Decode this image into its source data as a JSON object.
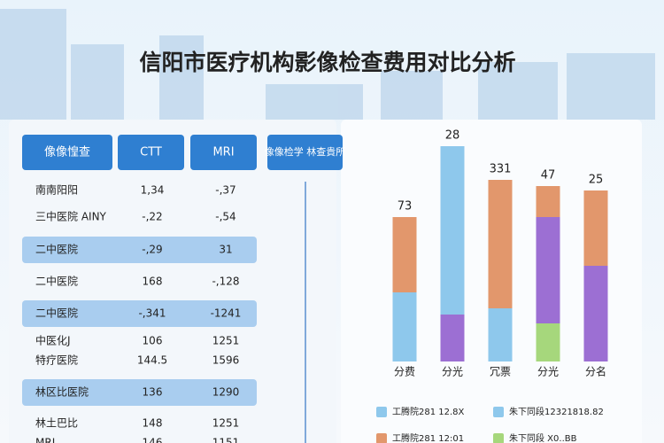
{
  "title": "信阳市医疗机构影像检查费用对比分析",
  "table": {
    "header": [
      "像像惶查",
      "CTT",
      "MRI",
      "像像检学 林查貴所"
    ],
    "rows": [
      [
        "南南阳阳",
        "1,34",
        "-,37"
      ],
      [
        "三中医院 AINY",
        "-,22",
        "-,54"
      ],
      [
        "二中医院",
        "-,29",
        "31"
      ],
      [
        "二中医院",
        "168",
        "-,128"
      ],
      [
        "二中医院",
        "-,341",
        "-1241"
      ],
      [
        "中医化J",
        "106",
        "1251"
      ],
      [
        "特疗医院",
        "144.5",
        "1596"
      ],
      [
        "林区比医院",
        "136",
        "1290"
      ],
      [
        "林土巴比",
        "148",
        "1251"
      ],
      [
        "MRI",
        "146",
        "1151"
      ]
    ],
    "highlight_rows": [
      2,
      4,
      7
    ]
  },
  "chart_data": {
    "type": "stacked-bar",
    "categories": [
      "分费",
      "分光",
      "冗票",
      "分光",
      "分名"
    ],
    "top_labels": [
      "73",
      "28",
      "331",
      "47",
      "25"
    ],
    "ylim": [
      0,
      260
    ],
    "series": [
      {
        "color": "#a6d77c",
        "values": [
          0,
          0,
          0,
          43,
          0
        ]
      },
      {
        "color": "#9c6fd3",
        "values": [
          0,
          53,
          0,
          120,
          108
        ]
      },
      {
        "color": "#8ec8ec",
        "values": [
          78,
          190,
          60,
          0,
          0
        ]
      },
      {
        "color": "#e2976c",
        "values": [
          85,
          0,
          145,
          35,
          85
        ]
      }
    ],
    "legend": [
      {
        "label": "工腾院281 12.8X",
        "color": "#8ec8ec"
      },
      {
        "label": "朱下同段12321818.82",
        "color": "#8ec8ec"
      },
      {
        "label": "工腾院281 12:01",
        "color": "#e2976c"
      },
      {
        "label": "朱下同段 X0..BB",
        "color": "#a6d77c"
      }
    ]
  }
}
